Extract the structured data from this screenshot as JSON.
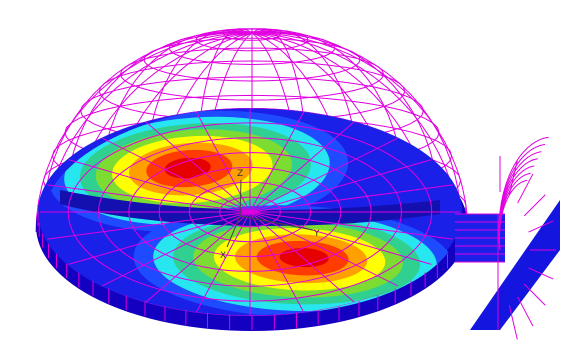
{
  "scene": {
    "background": "#ffffff",
    "mesh_color": "#e000e0",
    "contour_colors": [
      "#1500c8",
      "#1e4bff",
      "#28e6f0",
      "#30d090",
      "#7ddc32",
      "#ffff00",
      "#ffa000",
      "#ff3c00",
      "#e60000"
    ],
    "axes": {
      "color": "#444444",
      "labels": {
        "x": "X",
        "y": "Y",
        "z": "Z"
      }
    }
  }
}
